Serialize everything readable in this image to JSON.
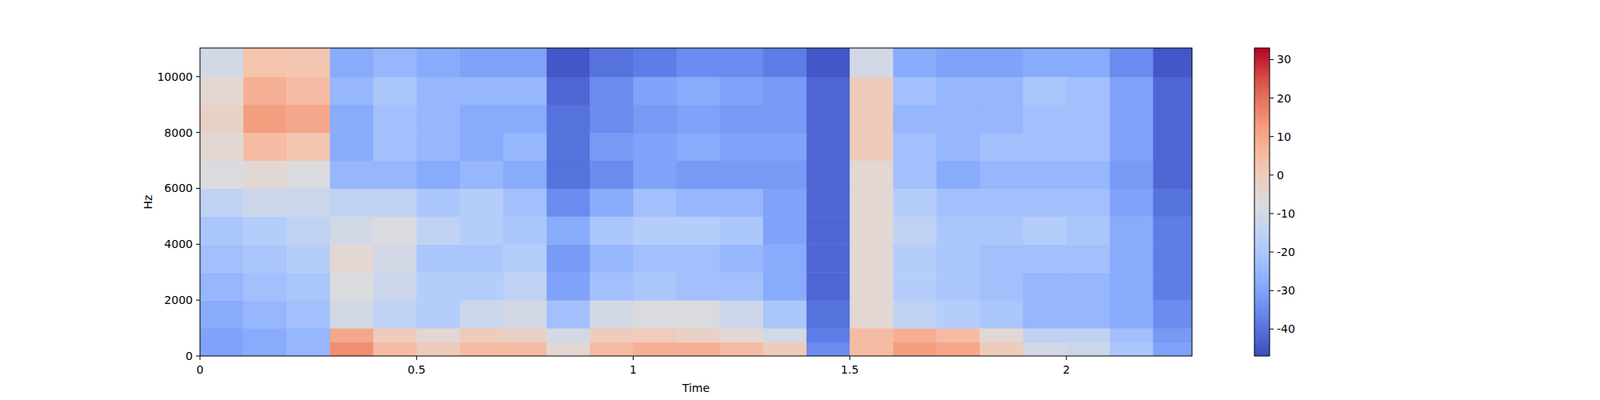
{
  "chart_data": {
    "type": "heatmap",
    "x_label": "Time",
    "y_label": "Hz",
    "color": "coolwarm",
    "x_bins": [
      0,
      0.1,
      0.2,
      0.3,
      0.4,
      0.5,
      0.6,
      0.7,
      0.8,
      0.9,
      1.0,
      1.1,
      1.2,
      1.3,
      1.4,
      1.5,
      1.6,
      1.7,
      1.8,
      1.9,
      2.0,
      2.1,
      2.2,
      2.3
    ],
    "y_bins": [
      0,
      500,
      1000,
      2000,
      3000,
      4000,
      5000,
      6000,
      7000,
      8000,
      9000,
      10000,
      11025
    ],
    "values": [
      [
        -30,
        -28,
        -25,
        15,
        5,
        0,
        5,
        5,
        -5,
        5,
        8,
        8,
        5,
        0,
        -35,
        5,
        12,
        10,
        0,
        -10,
        -12,
        -20,
        -30
      ],
      [
        -30,
        -28,
        -25,
        10,
        0,
        -5,
        0,
        -2,
        -10,
        0,
        0,
        -2,
        -5,
        -10,
        -38,
        5,
        8,
        5,
        -5,
        -15,
        -15,
        -22,
        -32
      ],
      [
        -28,
        -25,
        -22,
        -10,
        -15,
        -18,
        -12,
        -10,
        -22,
        -10,
        -8,
        -8,
        -12,
        -20,
        -40,
        -5,
        -15,
        -18,
        -20,
        -25,
        -25,
        -28,
        -35
      ],
      [
        -25,
        -22,
        -20,
        -8,
        -12,
        -18,
        -18,
        -15,
        -30,
        -22,
        -20,
        -22,
        -22,
        -28,
        -42,
        -5,
        -18,
        -20,
        -22,
        -25,
        -25,
        -28,
        -38
      ],
      [
        -22,
        -20,
        -18,
        -5,
        -10,
        -20,
        -20,
        -18,
        -32,
        -25,
        -22,
        -22,
        -25,
        -28,
        -42,
        -5,
        -18,
        -20,
        -22,
        -22,
        -22,
        -28,
        -38
      ],
      [
        -20,
        -18,
        -15,
        -10,
        -8,
        -15,
        -18,
        -20,
        -28,
        -20,
        -18,
        -18,
        -20,
        -30,
        -42,
        -5,
        -15,
        -20,
        -20,
        -18,
        -20,
        -28,
        -38
      ],
      [
        -15,
        -12,
        -12,
        -15,
        -15,
        -20,
        -18,
        -22,
        -35,
        -28,
        -22,
        -25,
        -25,
        -30,
        -42,
        -5,
        -18,
        -22,
        -22,
        -22,
        -22,
        -30,
        -40
      ],
      [
        -8,
        -5,
        -8,
        -25,
        -25,
        -28,
        -25,
        -28,
        -40,
        -35,
        -30,
        -32,
        -32,
        -32,
        -42,
        -5,
        -22,
        -28,
        -25,
        -25,
        -25,
        -32,
        -42
      ],
      [
        -5,
        5,
        2,
        -28,
        -22,
        -25,
        -28,
        -25,
        -40,
        -32,
        -30,
        -28,
        -30,
        -30,
        -42,
        0,
        -22,
        -25,
        -22,
        -22,
        -22,
        -30,
        -42
      ],
      [
        -2,
        12,
        10,
        -28,
        -22,
        -25,
        -28,
        -28,
        -40,
        -35,
        -32,
        -30,
        -32,
        -32,
        -42,
        0,
        -25,
        -25,
        -25,
        -22,
        -22,
        -30,
        -42
      ],
      [
        -5,
        8,
        5,
        -25,
        -20,
        -25,
        -25,
        -25,
        -42,
        -35,
        -30,
        -28,
        -30,
        -32,
        -42,
        0,
        -22,
        -25,
        -25,
        -20,
        -22,
        -30,
        -42
      ],
      [
        -10,
        3,
        2,
        -28,
        -25,
        -28,
        -30,
        -30,
        -45,
        -40,
        -38,
        -35,
        -35,
        -38,
        -45,
        -10,
        -28,
        -30,
        -30,
        -28,
        -28,
        -35,
        -45
      ]
    ],
    "xlim": [
      0,
      2.29
    ],
    "ylim": [
      0,
      11025
    ],
    "xticks": [
      0,
      0.5,
      1,
      1.5,
      2
    ],
    "yticks": [
      0,
      2000,
      4000,
      6000,
      8000,
      10000
    ],
    "colorbar": {
      "range": [
        -47,
        33
      ],
      "ticks": [
        -40,
        -30,
        -20,
        -10,
        0,
        10,
        20,
        30
      ]
    }
  }
}
